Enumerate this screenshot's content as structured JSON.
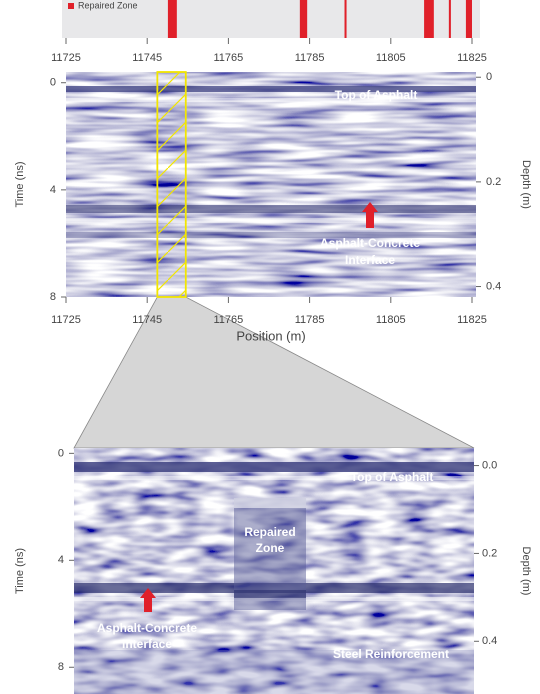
{
  "legend": {
    "label": "Repaired Zone",
    "color": "#e0202a"
  },
  "strip": {
    "xlim": [
      11725,
      11825
    ],
    "xticks": [
      11725,
      11745,
      11765,
      11785,
      11805,
      11825
    ],
    "zones": [
      [
        11750.1,
        11752.3
      ],
      [
        11782.6,
        11784.4
      ],
      [
        11793.6,
        11794.1
      ],
      [
        11813.2,
        11815.6
      ],
      [
        11819.3,
        11819.8
      ],
      [
        11823.5,
        11825
      ]
    ]
  },
  "overview": {
    "xlabel": "Position (m)",
    "ylabel": "Time (ns)",
    "y2label": "Depth (m)",
    "xlim": [
      11725,
      11825
    ],
    "xticks": [
      11725,
      11745,
      11765,
      11785,
      11805,
      11825
    ],
    "ylim": [
      -0.4,
      8
    ],
    "yticks": [
      0,
      4,
      8
    ],
    "y2lim": [
      -0.01,
      0.42
    ],
    "y2ticks": [
      0,
      0.2,
      0.4
    ],
    "zoom_box": [
      11747.5,
      11754.5
    ],
    "annotations": {
      "top": "Top of Asphalt",
      "interface": [
        "Asphalt-Concrete",
        "Interface"
      ]
    }
  },
  "detail": {
    "ylabel": "Time (ns)",
    "y2label": "Depth (m)",
    "ylim": [
      -0.2,
      9
    ],
    "yticks": [
      0,
      4,
      8
    ],
    "y2lim": [
      -0.04,
      0.52
    ],
    "y2ticks": [
      {
        "value": 0,
        "label": "0.0"
      },
      0.2,
      0.4
    ],
    "annotations": {
      "top": "Top of Asphalt",
      "repaired": [
        "Repaired",
        "Zone"
      ],
      "interface": [
        "Asphalt-Concrete",
        "Interface"
      ],
      "steel": "Steel Reinforcement"
    }
  }
}
